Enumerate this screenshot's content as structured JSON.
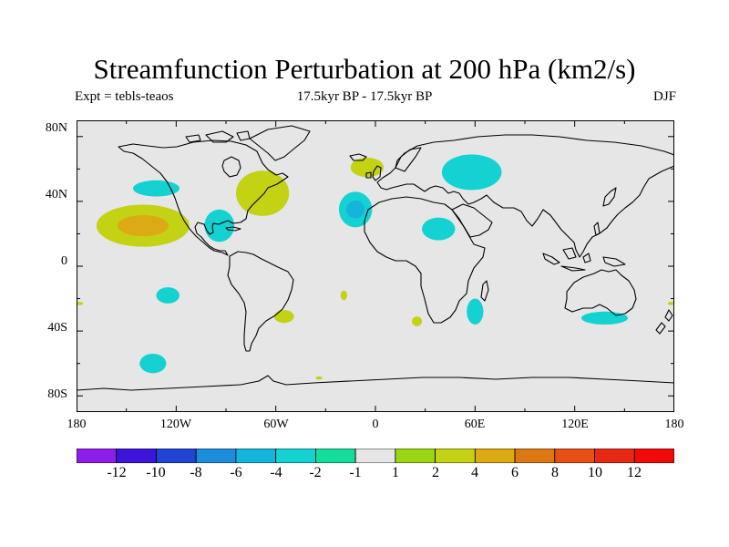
{
  "title": "Streamfunction Perturbation at 200 hPa (km2/s)",
  "experiment_label": "Expt = tebls-teaos",
  "period_label": "17.5kyr BP - 17.5kyr BP",
  "season_label": "DJF",
  "colors": {
    "land_ocean_background": "#e6e6e6",
    "coastline": "#000000"
  },
  "map_data": {
    "projection": "cylindrical-equidistant",
    "lon_range": [
      -180,
      180
    ],
    "lat_range": [
      -90,
      90
    ],
    "lon_ticks": [
      "180",
      "120W",
      "60W",
      "0",
      "60E",
      "120E",
      "180"
    ],
    "lat_ticks": [
      "80N",
      "40N",
      "0",
      "40S",
      "80S"
    ],
    "anomaly_regions": [
      {
        "name": "north-pacific-positive",
        "lon": -140,
        "lat": 25,
        "rlon": 28,
        "rlat": 13,
        "level": 2,
        "core_level": 4
      },
      {
        "name": "northeast-pacific-negative",
        "lon": -132,
        "lat": 48,
        "rlon": 14,
        "rlat": 5,
        "level": -2
      },
      {
        "name": "gulf-of-mexico-negative",
        "lon": -94,
        "lat": 25,
        "rlon": 9,
        "rlat": 10,
        "level": -2
      },
      {
        "name": "northeast-america-positive",
        "lon": -68,
        "lat": 45,
        "rlon": 16,
        "rlat": 14,
        "level": 2
      },
      {
        "name": "north-atlantic-negative",
        "lon": -12,
        "lat": 35,
        "rlon": 10,
        "rlat": 11,
        "level": -2,
        "core_level": -4
      },
      {
        "name": "iceland-positive",
        "lon": -5,
        "lat": 61,
        "rlon": 10,
        "rlat": 6,
        "level": 2
      },
      {
        "name": "siberia-negative",
        "lon": 58,
        "lat": 58,
        "rlon": 18,
        "rlat": 11,
        "level": -2
      },
      {
        "name": "arabia-negative",
        "lon": 38,
        "lat": 23,
        "rlon": 10,
        "rlat": 7,
        "level": -2
      },
      {
        "name": "south-pacific-negative",
        "lon": -125,
        "lat": -18,
        "rlon": 7,
        "rlat": 5,
        "level": -2
      },
      {
        "name": "south-america-positive",
        "lon": -55,
        "lat": -31,
        "rlon": 6,
        "rlat": 4,
        "level": 2
      },
      {
        "name": "south-atlantic-positive",
        "lon": -19,
        "lat": -18,
        "rlon": 2,
        "rlat": 3,
        "level": 2
      },
      {
        "name": "south-africa-positive",
        "lon": 25,
        "lat": -34,
        "rlon": 3,
        "rlat": 3,
        "level": 2
      },
      {
        "name": "indian-ocean-negative",
        "lon": 60,
        "lat": -28,
        "rlon": 5,
        "rlat": 8,
        "level": -2
      },
      {
        "name": "australia-negative",
        "lon": 138,
        "lat": -32,
        "rlon": 14,
        "rlat": 4,
        "level": -2
      },
      {
        "name": "southern-ocean-negative",
        "lon": -134,
        "lat": -60,
        "rlon": 8,
        "rlat": 6,
        "level": -2
      },
      {
        "name": "antarctic-coast-positive",
        "lon": -34,
        "lat": -69,
        "rlon": 2,
        "rlat": 1,
        "level": 2
      },
      {
        "name": "dateline-east-positive",
        "lon": 178,
        "lat": -23,
        "rlon": 2,
        "rlat": 1,
        "level": 2
      },
      {
        "name": "dateline-west-positive",
        "lon": -178,
        "lat": -23,
        "rlon": 2,
        "rlat": 1,
        "level": 2
      }
    ]
  },
  "colorbar": {
    "bins": [
      {
        "min": null,
        "max": -12,
        "color": "#8c1ee6"
      },
      {
        "min": -12,
        "max": -10,
        "color": "#3c14dc"
      },
      {
        "min": -10,
        "max": -8,
        "color": "#1e46d2"
      },
      {
        "min": -8,
        "max": -6,
        "color": "#1e8cdc"
      },
      {
        "min": -6,
        "max": -4,
        "color": "#14b4dc"
      },
      {
        "min": -4,
        "max": -2,
        "color": "#14d2d2"
      },
      {
        "min": -2,
        "max": -1,
        "color": "#14dc9a"
      },
      {
        "min": -1,
        "max": 1,
        "color": "#e6e6e6"
      },
      {
        "min": 1,
        "max": 2,
        "color": "#9ad614"
      },
      {
        "min": 2,
        "max": 4,
        "color": "#c4d214"
      },
      {
        "min": 4,
        "max": 6,
        "color": "#dcaa14"
      },
      {
        "min": 6,
        "max": 8,
        "color": "#dc7814"
      },
      {
        "min": 8,
        "max": 10,
        "color": "#e65014"
      },
      {
        "min": 10,
        "max": 12,
        "color": "#e62814"
      },
      {
        "min": 12,
        "max": null,
        "color": "#f00a0a"
      }
    ],
    "labels": [
      "-12",
      "-10",
      "-8",
      "-6",
      "-4",
      "-2",
      "-1",
      "1",
      "2",
      "4",
      "6",
      "8",
      "10",
      "12"
    ]
  }
}
